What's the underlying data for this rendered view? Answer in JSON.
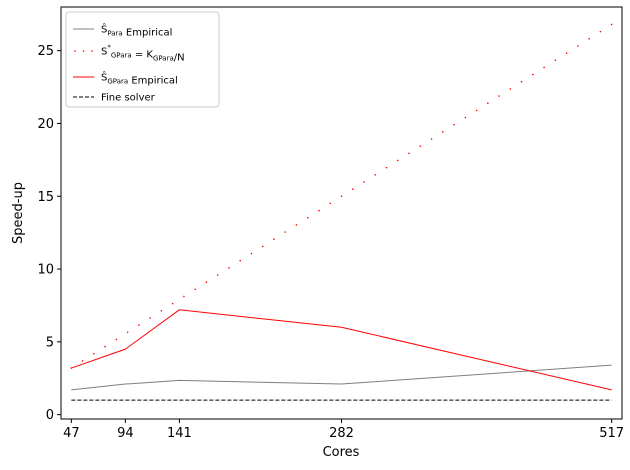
{
  "chart_data": {
    "type": "line",
    "xlabel": "Cores",
    "ylabel": "Speed-up",
    "x_ticks": [
      47,
      94,
      141,
      282,
      517
    ],
    "y_ticks": [
      0,
      5,
      10,
      15,
      20,
      25
    ],
    "xlim": [
      38,
      526
    ],
    "ylim": [
      -0.3,
      28
    ],
    "grid": false,
    "legend_position": "top-left",
    "series": [
      {
        "name": "Ŝ_Para Empirical",
        "legend": {
          "base": "Ŝ",
          "sub": "Para",
          "tail": " Empirical"
        },
        "style": "solid",
        "color": "#808080",
        "x": [
          47,
          94,
          141,
          282,
          517
        ],
        "y": [
          1.7,
          2.1,
          2.35,
          2.1,
          3.4
        ]
      },
      {
        "name": "S*_GPara = K_GPara/N",
        "legend": {
          "base": "S",
          "sup": "*",
          "sub": "GPara",
          "mid": " = K",
          "sub2": "GPara",
          "tail": "/N"
        },
        "style": "dotted",
        "color": "#ff0000",
        "x": [
          47,
          517
        ],
        "y": [
          3.2,
          26.8
        ]
      },
      {
        "name": "Ŝ_GPara Empirical",
        "legend": {
          "base": "Ŝ",
          "sub": "GPara",
          "tail": " Empirical"
        },
        "style": "solid",
        "color": "#ff0000",
        "x": [
          47,
          94,
          141,
          282,
          517
        ],
        "y": [
          3.2,
          4.5,
          7.2,
          6.0,
          1.7
        ]
      },
      {
        "name": "Fine solver",
        "legend": {
          "base": "Fine solver"
        },
        "style": "dashed",
        "color": "#000000",
        "x": [
          47,
          517
        ],
        "y": [
          1.0,
          1.0
        ]
      }
    ]
  }
}
